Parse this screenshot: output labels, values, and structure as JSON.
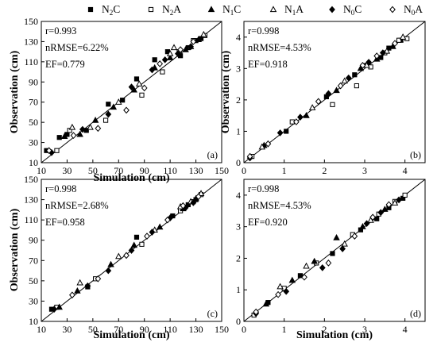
{
  "legend": [
    {
      "symbol": "square-filled",
      "main": "N",
      "sub": "2",
      "tail": "C"
    },
    {
      "symbol": "square-open",
      "main": "N",
      "sub": "2",
      "tail": "A"
    },
    {
      "symbol": "triangle-filled",
      "main": "N",
      "sub": "1",
      "tail": "C"
    },
    {
      "symbol": "triangle-open",
      "main": "N",
      "sub": "1",
      "tail": "A"
    },
    {
      "symbol": "diamond-filled",
      "main": "N",
      "sub": "0",
      "tail": "C"
    },
    {
      "symbol": "diamond-open",
      "main": "N",
      "sub": "0",
      "tail": "A"
    }
  ],
  "colors": {
    "marker": "#000000",
    "background": "#ffffff"
  },
  "chart_data": [
    {
      "type": "scatter",
      "panel_label": "(a)",
      "xlabel": "Simulation (cm)",
      "ylabel": "Observation (cm)",
      "xlim": [
        10,
        150
      ],
      "ylim": [
        10,
        150
      ],
      "xticks": [
        "10",
        "30",
        "50",
        "70",
        "90",
        "110",
        "130",
        "150"
      ],
      "yticks": [
        "10",
        "30",
        "50",
        "70",
        "90",
        "110",
        "130",
        "150"
      ],
      "reference_line": "1:1",
      "stats": [
        "r=0.993",
        "nRMSE=6.22%",
        "EF=0.779"
      ],
      "series": [
        {
          "name": "N2C",
          "marker": "square-filled",
          "points": [
            [
              14,
              22
            ],
            [
              24,
              35
            ],
            [
              30,
              38
            ],
            [
              45,
              42
            ],
            [
              62,
              68
            ],
            [
              73,
              72
            ],
            [
              84,
              93
            ],
            [
              98,
              112
            ],
            [
              108,
              120
            ],
            [
              118,
              116
            ],
            [
              124,
              124
            ],
            [
              130,
              131
            ],
            [
              134,
              133
            ]
          ]
        },
        {
          "name": "N2A",
          "marker": "square-open",
          "points": [
            [
              22,
              22
            ],
            [
              32,
              42
            ],
            [
              60,
              52
            ],
            [
              88,
              77
            ],
            [
              104,
              100
            ],
            [
              117,
              120
            ],
            [
              128,
              131
            ],
            [
              137,
              136
            ]
          ]
        },
        {
          "name": "N1C",
          "marker": "triangle-filled",
          "points": [
            [
              28,
              36
            ],
            [
              40,
              38
            ],
            [
              52,
              52
            ],
            [
              66,
              65
            ],
            [
              82,
              82
            ],
            [
              98,
              104
            ],
            [
              110,
              114
            ],
            [
              122,
              122
            ],
            [
              132,
              132
            ]
          ]
        },
        {
          "name": "N1A",
          "marker": "triangle-open",
          "points": [
            [
              34,
              45
            ],
            [
              48,
              45
            ],
            [
              70,
              70
            ],
            [
              86,
              88
            ],
            [
              110,
              118
            ],
            [
              113,
              124
            ],
            [
              126,
              125
            ],
            [
              136,
              137
            ]
          ]
        },
        {
          "name": "N0C",
          "marker": "diamond-filled",
          "points": [
            [
              18,
              20
            ],
            [
              42,
              43
            ],
            [
              62,
              58
            ],
            [
              80,
              85
            ],
            [
              96,
              102
            ],
            [
              106,
              112
            ],
            [
              116,
              118
            ],
            [
              126,
              125
            ]
          ]
        },
        {
          "name": "N0A",
          "marker": "diamond-open",
          "points": [
            [
              16,
              22
            ],
            [
              35,
              37
            ],
            [
              54,
              44
            ],
            [
              76,
              62
            ],
            [
              90,
              84
            ],
            [
              102,
              108
            ],
            [
              118,
              122
            ],
            [
              128,
              130
            ]
          ]
        }
      ]
    },
    {
      "type": "scatter",
      "panel_label": "(b)",
      "xlabel": "",
      "ylabel": "Observation (cm)",
      "xlim": [
        0,
        4.5
      ],
      "ylim": [
        0,
        4.5
      ],
      "xticks": [
        "0",
        "1",
        "2",
        "3",
        "4"
      ],
      "yticks": [
        "0",
        "1",
        "2",
        "3",
        "4"
      ],
      "reference_line": "1:1",
      "stats": [
        "r=0.998",
        "nRMSE=4.53%",
        "EF=0.918"
      ],
      "series": [
        {
          "name": "N2C",
          "marker": "square-filled",
          "points": [
            [
              1.05,
              1.0
            ],
            [
              2.05,
              2.1
            ],
            [
              2.75,
              2.8
            ],
            [
              3.05,
              3.1
            ],
            [
              3.4,
              3.35
            ],
            [
              3.6,
              3.65
            ],
            [
              3.9,
              3.9
            ]
          ]
        },
        {
          "name": "N2A",
          "marker": "square-open",
          "points": [
            [
              0.2,
              0.2
            ],
            [
              1.2,
              1.3
            ],
            [
              2.2,
              1.85
            ],
            [
              2.8,
              2.45
            ],
            [
              3.15,
              3.05
            ],
            [
              3.5,
              3.5
            ],
            [
              3.85,
              3.9
            ],
            [
              4.05,
              3.95
            ]
          ]
        },
        {
          "name": "N1C",
          "marker": "triangle-filled",
          "points": [
            [
              0.5,
              0.55
            ],
            [
              1.55,
              1.5
            ],
            [
              2.3,
              2.3
            ],
            [
              2.9,
              3.0
            ],
            [
              3.3,
              3.3
            ],
            [
              3.7,
              3.7
            ]
          ]
        },
        {
          "name": "N1A",
          "marker": "triangle-open",
          "points": [
            [
              0.45,
              0.5
            ],
            [
              1.7,
              1.75
            ],
            [
              2.5,
              2.6
            ],
            [
              3.05,
              3.1
            ],
            [
              3.55,
              3.55
            ],
            [
              3.95,
              4.0
            ]
          ]
        },
        {
          "name": "N0C",
          "marker": "diamond-filled",
          "points": [
            [
              0.15,
              0.15
            ],
            [
              0.9,
              0.95
            ],
            [
              1.4,
              1.45
            ],
            [
              2.1,
              2.2
            ],
            [
              2.6,
              2.7
            ],
            [
              3.1,
              3.2
            ],
            [
              3.45,
              3.5
            ]
          ]
        },
        {
          "name": "N0A",
          "marker": "diamond-open",
          "points": [
            [
              0.15,
              0.2
            ],
            [
              0.6,
              0.6
            ],
            [
              1.3,
              1.3
            ],
            [
              1.85,
              1.95
            ],
            [
              2.4,
              2.45
            ],
            [
              2.95,
              3.1
            ],
            [
              3.3,
              3.4
            ],
            [
              3.75,
              3.8
            ]
          ]
        }
      ]
    },
    {
      "type": "scatter",
      "panel_label": "(c)",
      "xlabel": "Simulation (cm)",
      "ylabel": "Observation (cm)",
      "xlim": [
        10,
        150
      ],
      "ylim": [
        10,
        150
      ],
      "xticks": [
        "10",
        "30",
        "50",
        "70",
        "90",
        "110",
        "130",
        "150"
      ],
      "yticks": [
        "10",
        "30",
        "50",
        "70",
        "90",
        "110",
        "130",
        "150"
      ],
      "reference_line": "1:1",
      "stats": [
        "r=0.998",
        "nRMSE=2.68%",
        "EF=0.958"
      ],
      "series": [
        {
          "name": "N2C",
          "marker": "square-filled",
          "points": [
            [
              18,
              22
            ],
            [
              46,
              44
            ],
            [
              84,
              93
            ],
            [
              112,
              114
            ],
            [
              124,
              125
            ],
            [
              130,
              130
            ]
          ]
        },
        {
          "name": "N2A",
          "marker": "square-open",
          "points": [
            [
              22,
              24
            ],
            [
              52,
              52
            ],
            [
              88,
              86
            ],
            [
              118,
              119
            ],
            [
              128,
              128
            ],
            [
              134,
              135
            ]
          ]
        },
        {
          "name": "N1C",
          "marker": "triangle-filled",
          "points": [
            [
              24,
              24
            ],
            [
              38,
              40
            ],
            [
              64,
              66
            ],
            [
              82,
              85
            ],
            [
              102,
              103
            ],
            [
              120,
              121
            ],
            [
              130,
              131
            ]
          ]
        },
        {
          "name": "N1A",
          "marker": "triangle-open",
          "points": [
            [
              40,
              48
            ],
            [
              70,
              74
            ],
            [
              98,
              100
            ],
            [
              118,
              123
            ],
            [
              126,
              128
            ],
            [
              134,
              136
            ]
          ]
        },
        {
          "name": "N0C",
          "marker": "diamond-filled",
          "points": [
            [
              20,
              22
            ],
            [
              46,
              45
            ],
            [
              62,
              60
            ],
            [
              80,
              80
            ],
            [
              96,
              98
            ],
            [
              110,
              112
            ],
            [
              122,
              122
            ],
            [
              128,
              127
            ]
          ]
        },
        {
          "name": "N0A",
          "marker": "diamond-open",
          "points": [
            [
              34,
              36
            ],
            [
              54,
              52
            ],
            [
              76,
              75
            ],
            [
              92,
              94
            ],
            [
              108,
              110
            ],
            [
              120,
              124
            ],
            [
              132,
              133
            ]
          ]
        }
      ]
    },
    {
      "type": "scatter",
      "panel_label": "(d)",
      "xlabel": "Simulation (cm)",
      "ylabel": "",
      "xlim": [
        0,
        4.5
      ],
      "ylim": [
        0,
        4.5
      ],
      "xticks": [
        "0",
        "1",
        "2",
        "3",
        "4"
      ],
      "yticks": [
        "0",
        "1",
        "2",
        "3",
        "4"
      ],
      "reference_line": "1:1",
      "stats": [
        "r=0.998",
        "nRMSE=4.53%",
        "EF=0.920"
      ],
      "series": [
        {
          "name": "N2C",
          "marker": "square-filled",
          "points": [
            [
              0.6,
              0.6
            ],
            [
              1.4,
              1.45
            ],
            [
              2.2,
              2.15
            ],
            [
              2.9,
              2.9
            ],
            [
              3.3,
              3.25
            ],
            [
              3.6,
              3.6
            ],
            [
              3.95,
              3.9
            ]
          ]
        },
        {
          "name": "N2A",
          "marker": "square-open",
          "points": [
            [
              0.25,
              0.2
            ],
            [
              1.0,
              1.05
            ],
            [
              1.8,
              1.85
            ],
            [
              2.7,
              2.75
            ],
            [
              3.35,
              3.4
            ],
            [
              3.75,
              3.8
            ],
            [
              4.0,
              4.0
            ]
          ]
        },
        {
          "name": "N1C",
          "marker": "triangle-filled",
          "points": [
            [
              0.55,
              0.55
            ],
            [
              1.2,
              1.3
            ],
            [
              1.75,
              1.9
            ],
            [
              2.3,
              2.65
            ],
            [
              2.95,
              3.0
            ],
            [
              3.5,
              3.55
            ]
          ]
        },
        {
          "name": "N1A",
          "marker": "triangle-open",
          "points": [
            [
              0.9,
              1.1
            ],
            [
              1.55,
              1.75
            ],
            [
              2.5,
              2.45
            ],
            [
              3.15,
              3.2
            ],
            [
              3.75,
              3.75
            ]
          ]
        },
        {
          "name": "N0C",
          "marker": "diamond-filled",
          "points": [
            [
              0.3,
              0.25
            ],
            [
              1.05,
              0.95
            ],
            [
              1.95,
              1.7
            ],
            [
              2.45,
              2.3
            ],
            [
              3.05,
              3.1
            ],
            [
              3.4,
              3.45
            ],
            [
              3.85,
              3.85
            ]
          ]
        },
        {
          "name": "N0A",
          "marker": "diamond-open",
          "points": [
            [
              0.3,
              0.3
            ],
            [
              0.85,
              0.85
            ],
            [
              1.5,
              1.4
            ],
            [
              2.1,
              1.85
            ],
            [
              2.75,
              2.7
            ],
            [
              3.2,
              3.3
            ],
            [
              3.6,
              3.7
            ]
          ]
        }
      ]
    }
  ]
}
